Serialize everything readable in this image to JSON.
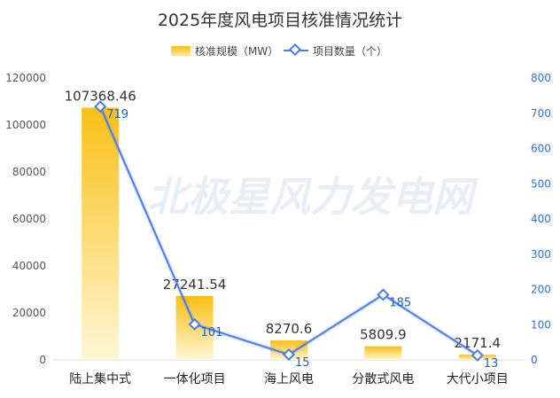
{
  "chart_data": {
    "type": "bar",
    "title": "2025年度风电项目核准情况统计",
    "categories": [
      "陆上集中式",
      "一体化项目",
      "海上风电",
      "分散式风电",
      "大代小项目"
    ],
    "series": [
      {
        "name": "核准规模（MW）",
        "type": "bar",
        "axis": "left",
        "values": [
          107368.46,
          27241.54,
          8270.6,
          5809.9,
          2171.4
        ],
        "value_labels": [
          "107368.46",
          "27241.54",
          "8270.6",
          "5809.9",
          "2171.4"
        ]
      },
      {
        "name": "项目数量（个）",
        "type": "line",
        "axis": "right",
        "values": [
          719,
          101,
          15,
          185,
          13
        ],
        "value_labels": [
          "719",
          "101",
          "15",
          "185",
          "13"
        ]
      }
    ],
    "y_left": {
      "min": 0,
      "max": 120000,
      "ticks": [
        "0",
        "20000",
        "40000",
        "60000",
        "80000",
        "100000",
        "120000"
      ]
    },
    "y_right": {
      "min": 0,
      "max": 800,
      "ticks": [
        "0",
        "100",
        "200",
        "300",
        "400",
        "500",
        "600",
        "700",
        "800"
      ]
    },
    "legend_position": "top-center",
    "grid": false,
    "watermark": "北极星风力发电网",
    "colors": {
      "bar_top": "#f9bf14",
      "bar_bottom": "#fff7d6",
      "line": "#4a7cf0",
      "right_axis": "#2f6fde"
    }
  }
}
